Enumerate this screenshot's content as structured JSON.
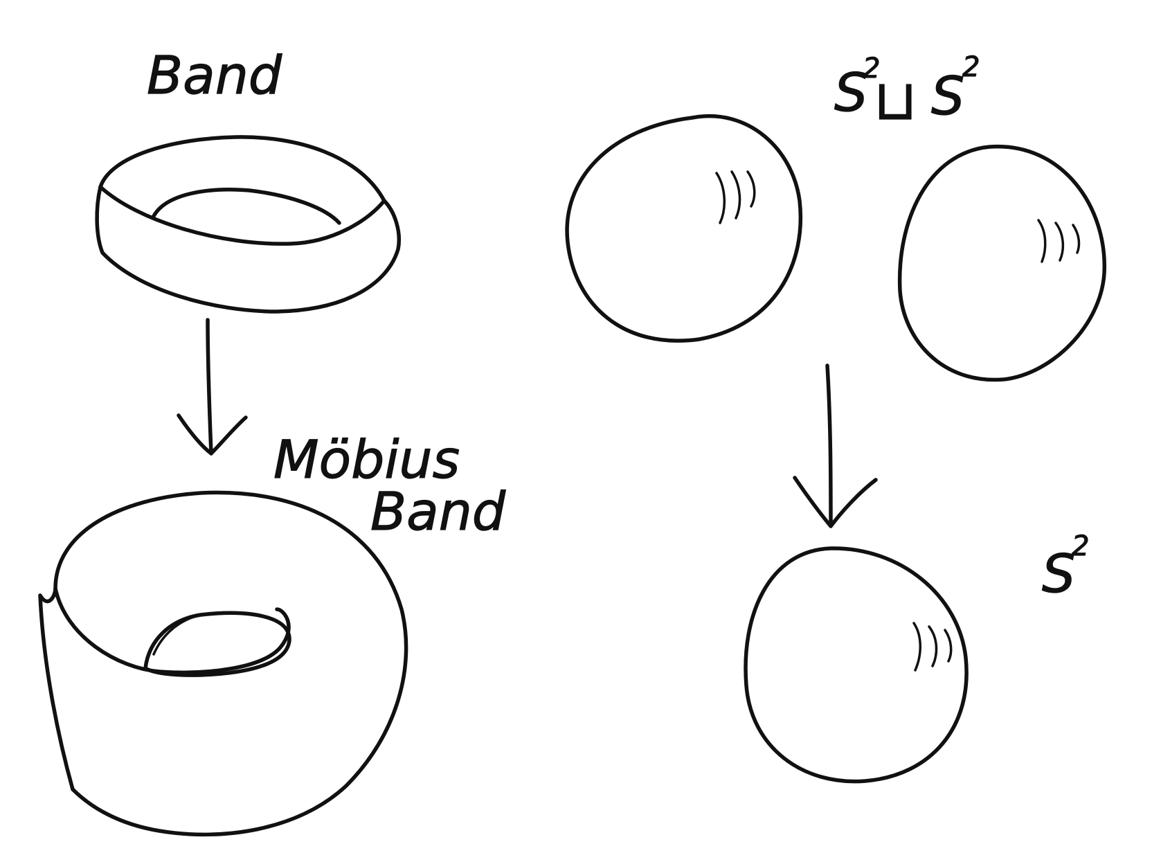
{
  "labels": {
    "band": "Band",
    "mobius_line1": "Möbius",
    "mobius_line2": "Band",
    "disjoint_union": {
      "left_base": "S",
      "left_exp": "2",
      "operator": "⊔",
      "right_base": "S",
      "right_exp": "2"
    },
    "sphere": {
      "base": "S",
      "exp": "2"
    }
  },
  "colors": {
    "ink": "#111111",
    "paper": "#ffffff"
  }
}
